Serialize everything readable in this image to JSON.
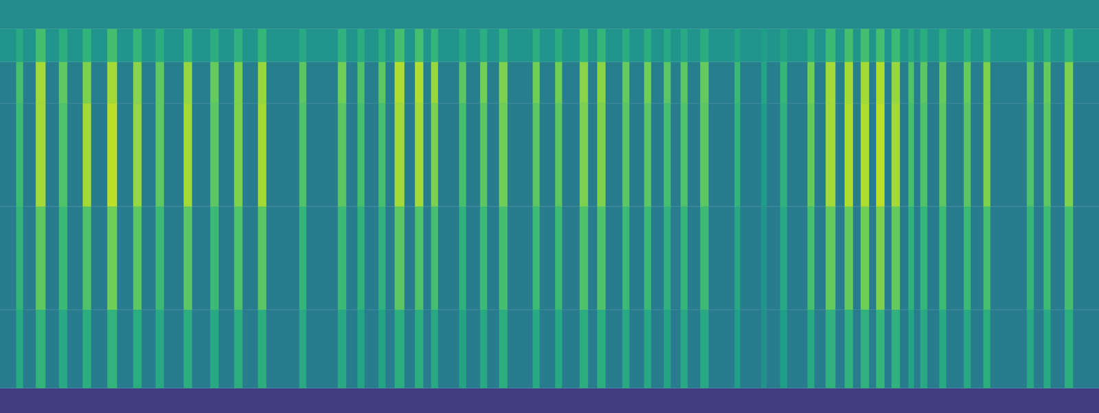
{
  "chart_data": {
    "type": "heatmap",
    "tick_labels": false,
    "xlim": [
      0,
      1568
    ],
    "ylim": [
      0,
      100
    ],
    "zlim": [
      0,
      1
    ],
    "y_bands": [
      0,
      6,
      25,
      50,
      75,
      85,
      93,
      100
    ],
    "background": [
      0.18,
      0.42,
      0.42,
      0.42,
      0.43,
      0.52,
      0.48
    ],
    "stripes": [
      {
        "x0": 23,
        "x1": 33,
        "values": [
          null,
          0.6,
          0.65,
          0.68,
          0.7,
          0.6,
          null
        ]
      },
      {
        "x0": 51,
        "x1": 65,
        "values": [
          null,
          0.65,
          0.75,
          0.86,
          0.86,
          0.7,
          null
        ]
      },
      {
        "x0": 84,
        "x1": 96,
        "values": [
          null,
          0.6,
          0.68,
          0.72,
          0.75,
          0.62,
          null
        ]
      },
      {
        "x0": 118,
        "x1": 130,
        "values": [
          null,
          0.62,
          0.72,
          0.86,
          0.8,
          0.65,
          null
        ]
      },
      {
        "x0": 153,
        "x1": 167,
        "values": [
          null,
          0.65,
          0.78,
          0.9,
          0.86,
          0.7,
          null
        ]
      },
      {
        "x0": 190,
        "x1": 202,
        "values": [
          null,
          0.62,
          0.74,
          0.84,
          0.82,
          0.66,
          null
        ]
      },
      {
        "x0": 222,
        "x1": 234,
        "values": [
          null,
          0.6,
          0.68,
          0.75,
          0.75,
          0.62,
          null
        ]
      },
      {
        "x0": 262,
        "x1": 274,
        "values": [
          null,
          0.62,
          0.74,
          0.86,
          0.84,
          0.66,
          null
        ]
      },
      {
        "x0": 300,
        "x1": 312,
        "values": [
          null,
          0.6,
          0.68,
          0.74,
          0.76,
          0.62,
          null
        ]
      },
      {
        "x0": 334,
        "x1": 346,
        "values": [
          null,
          0.62,
          0.72,
          0.8,
          0.8,
          0.64,
          null
        ]
      },
      {
        "x0": 368,
        "x1": 380,
        "values": [
          null,
          0.62,
          0.74,
          0.86,
          0.84,
          0.66,
          null
        ]
      },
      {
        "x0": 427,
        "x1": 437,
        "values": [
          null,
          0.6,
          0.66,
          0.72,
          0.74,
          0.6,
          null
        ]
      },
      {
        "x0": 482,
        "x1": 494,
        "values": [
          null,
          0.6,
          0.68,
          0.74,
          0.78,
          0.64,
          null
        ]
      },
      {
        "x0": 510,
        "x1": 520,
        "values": [
          null,
          0.58,
          0.64,
          0.7,
          0.72,
          0.62,
          null
        ]
      },
      {
        "x0": 540,
        "x1": 550,
        "values": [
          null,
          0.58,
          0.64,
          0.7,
          0.74,
          0.62,
          null
        ]
      },
      {
        "x0": 563,
        "x1": 577,
        "values": [
          null,
          0.62,
          0.74,
          0.86,
          0.88,
          0.7,
          null
        ]
      },
      {
        "x0": 592,
        "x1": 604,
        "values": [
          null,
          0.62,
          0.72,
          0.86,
          0.88,
          0.7,
          null
        ]
      },
      {
        "x0": 615,
        "x1": 625,
        "values": [
          null,
          0.6,
          0.7,
          0.8,
          0.84,
          0.66,
          null
        ]
      },
      {
        "x0": 655,
        "x1": 665,
        "values": [
          null,
          0.58,
          0.64,
          0.7,
          0.74,
          0.6,
          null
        ]
      },
      {
        "x0": 685,
        "x1": 695,
        "values": [
          null,
          0.6,
          0.68,
          0.74,
          0.78,
          0.62,
          null
        ]
      },
      {
        "x0": 712,
        "x1": 724,
        "values": [
          null,
          0.62,
          0.7,
          0.78,
          0.8,
          0.64,
          null
        ]
      },
      {
        "x0": 760,
        "x1": 770,
        "values": [
          null,
          0.6,
          0.68,
          0.74,
          0.78,
          0.62,
          null
        ]
      },
      {
        "x0": 792,
        "x1": 802,
        "values": [
          null,
          0.6,
          0.68,
          0.74,
          0.78,
          0.62,
          null
        ]
      },
      {
        "x0": 827,
        "x1": 839,
        "values": [
          null,
          0.62,
          0.72,
          0.8,
          0.82,
          0.66,
          null
        ]
      },
      {
        "x0": 852,
        "x1": 864,
        "values": [
          null,
          0.62,
          0.72,
          0.8,
          0.82,
          0.66,
          null
        ]
      },
      {
        "x0": 888,
        "x1": 898,
        "values": [
          null,
          0.6,
          0.68,
          0.74,
          0.76,
          0.62,
          null
        ]
      },
      {
        "x0": 919,
        "x1": 929,
        "values": [
          null,
          0.6,
          0.68,
          0.74,
          0.78,
          0.62,
          null
        ]
      },
      {
        "x0": 947,
        "x1": 957,
        "values": [
          null,
          0.58,
          0.64,
          0.7,
          0.74,
          0.6,
          null
        ]
      },
      {
        "x0": 971,
        "x1": 981,
        "values": [
          null,
          0.6,
          0.66,
          0.72,
          0.74,
          0.6,
          null
        ]
      },
      {
        "x0": 999,
        "x1": 1011,
        "values": [
          null,
          0.6,
          0.68,
          0.74,
          0.76,
          0.62,
          null
        ]
      },
      {
        "x0": 1048,
        "x1": 1056,
        "values": [
          null,
          0.56,
          0.6,
          0.66,
          0.68,
          0.58,
          null
        ]
      },
      {
        "x0": 1086,
        "x1": 1094,
        "values": [
          null,
          0.5,
          0.52,
          0.55,
          0.58,
          0.56,
          null
        ]
      },
      {
        "x0": 1113,
        "x1": 1123,
        "values": [
          null,
          0.56,
          0.6,
          0.64,
          0.66,
          0.58,
          null
        ]
      },
      {
        "x0": 1152,
        "x1": 1162,
        "values": [
          null,
          0.6,
          0.7,
          0.76,
          0.78,
          0.62,
          null
        ]
      },
      {
        "x0": 1178,
        "x1": 1192,
        "values": [
          null,
          0.64,
          0.76,
          0.86,
          0.86,
          0.68,
          null
        ]
      },
      {
        "x0": 1205,
        "x1": 1217,
        "values": [
          null,
          0.64,
          0.76,
          0.88,
          0.86,
          0.7,
          null
        ]
      },
      {
        "x0": 1228,
        "x1": 1240,
        "values": [
          null,
          0.64,
          0.78,
          0.88,
          0.86,
          0.7,
          null
        ]
      },
      {
        "x0": 1250,
        "x1": 1262,
        "values": [
          null,
          0.66,
          0.8,
          0.9,
          0.88,
          0.7,
          null
        ]
      },
      {
        "x0": 1272,
        "x1": 1284,
        "values": [
          null,
          0.64,
          0.76,
          0.86,
          0.84,
          0.68,
          null
        ]
      },
      {
        "x0": 1296,
        "x1": 1304,
        "values": [
          null,
          0.58,
          0.64,
          0.7,
          0.72,
          0.6,
          null
        ]
      },
      {
        "x0": 1313,
        "x1": 1323,
        "values": [
          null,
          0.6,
          0.66,
          0.72,
          0.74,
          0.62,
          null
        ]
      },
      {
        "x0": 1340,
        "x1": 1350,
        "values": [
          null,
          0.6,
          0.68,
          0.74,
          0.76,
          0.62,
          null
        ]
      },
      {
        "x0": 1375,
        "x1": 1385,
        "values": [
          null,
          0.6,
          0.68,
          0.74,
          0.76,
          0.62,
          null
        ]
      },
      {
        "x0": 1403,
        "x1": 1413,
        "values": [
          null,
          0.62,
          0.7,
          0.8,
          0.8,
          0.64,
          null
        ]
      },
      {
        "x0": 1465,
        "x1": 1475,
        "values": [
          null,
          0.6,
          0.66,
          0.72,
          0.74,
          0.62,
          null
        ]
      },
      {
        "x0": 1489,
        "x1": 1499,
        "values": [
          null,
          0.6,
          0.68,
          0.74,
          0.76,
          0.62,
          null
        ]
      },
      {
        "x0": 1519,
        "x1": 1531,
        "values": [
          null,
          0.62,
          0.7,
          0.8,
          0.8,
          0.64,
          null
        ]
      }
    ]
  }
}
